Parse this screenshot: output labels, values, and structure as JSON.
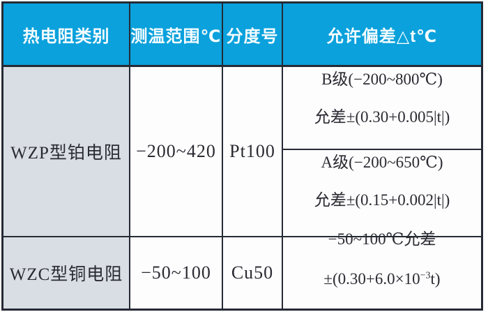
{
  "table": {
    "headers": [
      {
        "label": "热电阻类别"
      },
      {
        "label": "测温范围℃"
      },
      {
        "label": "分度号"
      },
      {
        "label": "允许偏差△t℃"
      }
    ],
    "rows": {
      "wzp": {
        "type": "WZP型铂电阻",
        "range": "−200~420",
        "graduation": "Pt100",
        "deviation_b_title": "B级(−200~800℃)",
        "deviation_b_formula": "允差±(0.30+0.005|t|)",
        "deviation_a_title": "A级(−200~650℃)",
        "deviation_a_formula": "允差±(0.15+0.002|t|)"
      },
      "wzc": {
        "type": "WZC型铜电阻",
        "range": "−50~100",
        "graduation": "Cu50",
        "deviation_title": "−50~100℃允差",
        "deviation_formula_prefix": "±(0.30+6.0×10",
        "deviation_formula_exponent": "−3",
        "deviation_formula_suffix": "t)"
      }
    },
    "colors": {
      "header_bg": "#0AA1DC",
      "row_label_bg": "#D9DEE4",
      "border": "#252A35",
      "body_bg": "#FDFDFD",
      "header_text": "#F4FBFE",
      "body_text": "#2A2A32"
    }
  }
}
